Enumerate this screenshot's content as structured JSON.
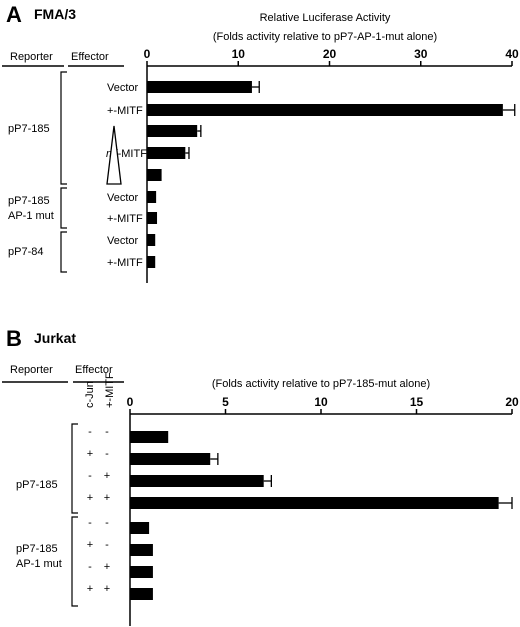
{
  "chart_data": [
    {
      "type": "bar",
      "orientation": "horizontal",
      "panel": "A",
      "title": "FMA/3",
      "axis_title": "Relative Luciferase Activity",
      "axis_subtitle": "(Folds activity relative to pP7-AP-1-mut alone)",
      "xlim": [
        0,
        40
      ],
      "ticks": [
        "0",
        "10",
        "20",
        "30",
        "40"
      ],
      "column_headers": [
        "Reporter",
        "Effector"
      ],
      "groups": [
        {
          "reporter": "pP7-185",
          "rows": [
            0,
            1,
            2,
            3,
            4
          ]
        },
        {
          "reporter": "pP7-185 AP-1 mut",
          "rows": [
            5,
            6
          ]
        },
        {
          "reporter": "pP7-84",
          "rows": [
            7,
            8
          ]
        }
      ],
      "effector_labels": [
        "Vector",
        "+-MITF",
        "mi-MITF",
        "",
        "",
        "Vector",
        "+-MITF",
        "Vector",
        "+-MITF"
      ],
      "wedge_label_prefix": "mi",
      "wedge_label_suffix": "-MITF",
      "values": [
        11.5,
        39,
        5.5,
        4.2,
        1.6,
        1.0,
        1.1,
        0.9,
        0.9
      ],
      "errors": [
        0.8,
        1.3,
        0.4,
        0.4,
        0,
        0,
        0,
        0,
        0
      ]
    },
    {
      "type": "bar",
      "orientation": "horizontal",
      "panel": "B",
      "title": "Jurkat",
      "axis_subtitle": "(Folds activity relative to pP7-185-mut alone)",
      "xlim": [
        0,
        20
      ],
      "ticks": [
        "0",
        "5",
        "10",
        "15",
        "20"
      ],
      "column_headers": [
        "Reporter",
        "Effector"
      ],
      "effector_columns": [
        "c-Jun",
        "+-MITF"
      ],
      "groups": [
        {
          "reporter": "pP7-185",
          "rows": [
            0,
            1,
            2,
            3
          ]
        },
        {
          "reporter": "pP7-185 AP-1 mut",
          "rows": [
            4,
            5,
            6,
            7
          ]
        }
      ],
      "signs": [
        [
          "-",
          "-"
        ],
        [
          "+",
          "-"
        ],
        [
          "-",
          "+"
        ],
        [
          "+",
          "+"
        ],
        [
          "-",
          "-"
        ],
        [
          "+",
          "-"
        ],
        [
          "-",
          "+"
        ],
        [
          "+",
          "+"
        ]
      ],
      "values": [
        2.0,
        4.2,
        7.0,
        19.3,
        1.0,
        1.2,
        1.2,
        1.2
      ],
      "errors": [
        0,
        0.4,
        0.4,
        0.7,
        0,
        0,
        0,
        0
      ]
    }
  ]
}
